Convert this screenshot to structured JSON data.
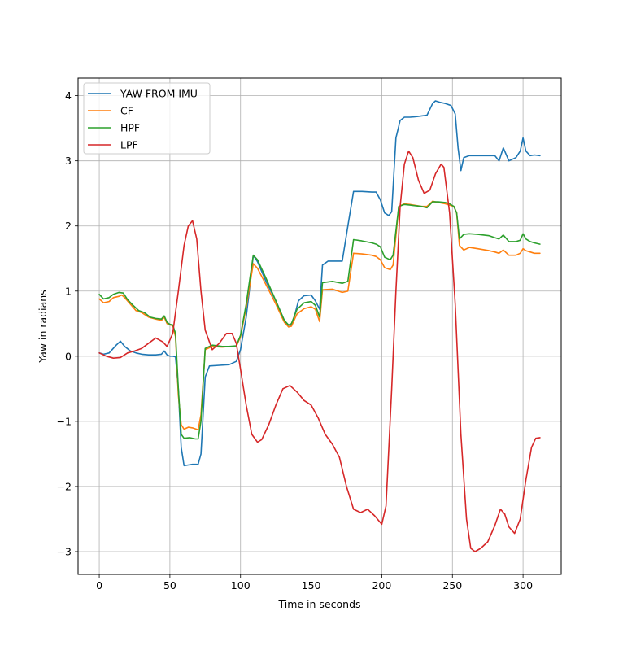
{
  "chart_data": {
    "type": "line",
    "title": "",
    "xlabel": "Time in seconds",
    "ylabel": "Yaw in radians",
    "xlim": [
      -15,
      327
    ],
    "ylim": [
      -3.35,
      4.27
    ],
    "xticks": [
      0,
      50,
      100,
      150,
      200,
      250,
      300
    ],
    "yticks": [
      -3,
      -2,
      -1,
      0,
      1,
      2,
      3,
      4
    ],
    "xtick_labels": [
      "0",
      "50",
      "100",
      "150",
      "200",
      "250",
      "300"
    ],
    "ytick_labels": [
      "−3",
      "−2",
      "−1",
      "0",
      "1",
      "2",
      "3",
      "4"
    ],
    "grid": true,
    "legend_position": "upper-left",
    "series": [
      {
        "name": "YAW FROM IMU",
        "color": "#1f77b4",
        "x": [
          0,
          3,
          7,
          12,
          15,
          18,
          22,
          26,
          30,
          35,
          40,
          44,
          46,
          48,
          50,
          52,
          54,
          56,
          58,
          60,
          63,
          66,
          70,
          72,
          75,
          78,
          85,
          92,
          97,
          100,
          104,
          107,
          109,
          112,
          118,
          125,
          131,
          134,
          136,
          138,
          141,
          145,
          150,
          153,
          156,
          158,
          162,
          167,
          172,
          176,
          180,
          186,
          193,
          196,
          199,
          202,
          205,
          207,
          210,
          213,
          216,
          220,
          225,
          232,
          236,
          238,
          241,
          245,
          249,
          252,
          254,
          256,
          258,
          262,
          268,
          275,
          280,
          283,
          286,
          290,
          295,
          298,
          300,
          302,
          305,
          308,
          312
        ],
        "values": [
          0.05,
          0.03,
          0.05,
          0.17,
          0.23,
          0.15,
          0.08,
          0.05,
          0.03,
          0.02,
          0.02,
          0.03,
          0.08,
          0.02,
          0.0,
          0.0,
          -0.01,
          -0.5,
          -1.4,
          -1.68,
          -1.67,
          -1.66,
          -1.66,
          -1.5,
          -0.32,
          -0.15,
          -0.14,
          -0.13,
          -0.08,
          0.1,
          0.6,
          1.15,
          1.55,
          1.45,
          1.15,
          0.85,
          0.55,
          0.45,
          0.48,
          0.6,
          0.85,
          0.93,
          0.94,
          0.85,
          0.72,
          1.4,
          1.46,
          1.46,
          1.46,
          2.0,
          2.53,
          2.53,
          2.52,
          2.52,
          2.4,
          2.2,
          2.16,
          2.22,
          3.35,
          3.62,
          3.67,
          3.67,
          3.68,
          3.7,
          3.88,
          3.92,
          3.9,
          3.88,
          3.85,
          3.72,
          3.2,
          2.85,
          3.05,
          3.08,
          3.08,
          3.08,
          3.08,
          3.0,
          3.2,
          3.0,
          3.05,
          3.15,
          3.35,
          3.15,
          3.08,
          3.09,
          3.08
        ]
      },
      {
        "name": "CF",
        "color": "#ff7f0e",
        "x": [
          0,
          3,
          7,
          10,
          14,
          16,
          18,
          22,
          26,
          30,
          35,
          40,
          44,
          46,
          48,
          50,
          52,
          54,
          56,
          58,
          60,
          63,
          66,
          70,
          72,
          75,
          80,
          87,
          92,
          97,
          100,
          104,
          107,
          109,
          112,
          118,
          125,
          131,
          134,
          136,
          140,
          145,
          150,
          153,
          156,
          158,
          165,
          172,
          176,
          180,
          186,
          193,
          196,
          199,
          202,
          206,
          208,
          212,
          216,
          220,
          228,
          232,
          236,
          240,
          245,
          248,
          251,
          253,
          255,
          258,
          262,
          268,
          276,
          280,
          283,
          286,
          290,
          295,
          298,
          300,
          302,
          305,
          308,
          312
        ],
        "values": [
          0.88,
          0.82,
          0.84,
          0.9,
          0.92,
          0.94,
          0.9,
          0.8,
          0.7,
          0.67,
          0.6,
          0.57,
          0.55,
          0.6,
          0.5,
          0.48,
          0.47,
          0.3,
          -0.6,
          -1.05,
          -1.12,
          -1.09,
          -1.1,
          -1.13,
          -0.9,
          0.1,
          0.15,
          0.14,
          0.15,
          0.15,
          0.3,
          0.75,
          1.15,
          1.42,
          1.35,
          1.1,
          0.8,
          0.52,
          0.45,
          0.46,
          0.65,
          0.73,
          0.76,
          0.72,
          0.53,
          1.02,
          1.03,
          0.98,
          1.0,
          1.58,
          1.57,
          1.55,
          1.53,
          1.48,
          1.36,
          1.33,
          1.4,
          2.3,
          2.34,
          2.33,
          2.3,
          2.3,
          2.38,
          2.36,
          2.34,
          2.32,
          2.3,
          2.2,
          1.7,
          1.63,
          1.67,
          1.65,
          1.62,
          1.6,
          1.58,
          1.63,
          1.55,
          1.55,
          1.58,
          1.65,
          1.62,
          1.6,
          1.58,
          1.58
        ]
      },
      {
        "name": "HPF",
        "color": "#2ca02c",
        "x": [
          0,
          3,
          7,
          10,
          14,
          17,
          20,
          24,
          28,
          32,
          36,
          40,
          44,
          46,
          48,
          50,
          52,
          54,
          56,
          58,
          60,
          64,
          68,
          70,
          72,
          75,
          80,
          87,
          92,
          97,
          100,
          104,
          107,
          109,
          112,
          118,
          125,
          131,
          134,
          136,
          140,
          145,
          150,
          153,
          156,
          158,
          165,
          172,
          176,
          180,
          186,
          193,
          196,
          199,
          202,
          206,
          208,
          212,
          216,
          220,
          228,
          232,
          236,
          240,
          245,
          248,
          251,
          253,
          255,
          258,
          262,
          268,
          276,
          280,
          283,
          286,
          290,
          295,
          298,
          300,
          302,
          305,
          308,
          312
        ],
        "values": [
          0.95,
          0.88,
          0.9,
          0.95,
          0.98,
          0.97,
          0.87,
          0.78,
          0.7,
          0.67,
          0.6,
          0.58,
          0.57,
          0.62,
          0.52,
          0.49,
          0.48,
          0.35,
          -0.5,
          -1.2,
          -1.26,
          -1.25,
          -1.27,
          -1.27,
          -1.0,
          0.12,
          0.17,
          0.15,
          0.15,
          0.16,
          0.32,
          0.8,
          1.25,
          1.55,
          1.48,
          1.2,
          0.85,
          0.55,
          0.48,
          0.5,
          0.72,
          0.82,
          0.84,
          0.78,
          0.6,
          1.13,
          1.15,
          1.12,
          1.15,
          1.79,
          1.77,
          1.74,
          1.72,
          1.68,
          1.52,
          1.48,
          1.55,
          2.3,
          2.33,
          2.32,
          2.3,
          2.28,
          2.37,
          2.37,
          2.36,
          2.34,
          2.3,
          2.2,
          1.8,
          1.87,
          1.88,
          1.87,
          1.85,
          1.82,
          1.8,
          1.86,
          1.76,
          1.76,
          1.78,
          1.88,
          1.8,
          1.76,
          1.74,
          1.72
        ]
      },
      {
        "name": "LPF",
        "color": "#d62728",
        "x": [
          0,
          5,
          10,
          15,
          20,
          25,
          30,
          35,
          40,
          45,
          48,
          52,
          56,
          60,
          63,
          66,
          69,
          72,
          75,
          80,
          85,
          90,
          94,
          97,
          100,
          104,
          108,
          112,
          115,
          120,
          125,
          130,
          135,
          140,
          145,
          150,
          155,
          160,
          165,
          170,
          175,
          180,
          185,
          190,
          195,
          200,
          203,
          207,
          210,
          213,
          216,
          219,
          222,
          226,
          230,
          234,
          238,
          242,
          244,
          248,
          252,
          256,
          260,
          263,
          266,
          270,
          275,
          280,
          284,
          287,
          290,
          294,
          298,
          302,
          306,
          309,
          312
        ],
        "values": [
          0.05,
          0.0,
          -0.03,
          -0.02,
          0.05,
          0.08,
          0.12,
          0.2,
          0.28,
          0.22,
          0.15,
          0.35,
          1.0,
          1.7,
          2.0,
          2.08,
          1.8,
          1.0,
          0.4,
          0.1,
          0.2,
          0.35,
          0.35,
          0.2,
          -0.2,
          -0.75,
          -1.2,
          -1.32,
          -1.28,
          -1.05,
          -0.75,
          -0.5,
          -0.45,
          -0.55,
          -0.68,
          -0.75,
          -0.95,
          -1.2,
          -1.35,
          -1.55,
          -2.0,
          -2.35,
          -2.4,
          -2.35,
          -2.45,
          -2.58,
          -2.3,
          -0.5,
          1.0,
          2.3,
          2.95,
          3.15,
          3.05,
          2.7,
          2.5,
          2.55,
          2.8,
          2.95,
          2.9,
          2.2,
          0.8,
          -1.2,
          -2.5,
          -2.95,
          -3.0,
          -2.95,
          -2.85,
          -2.6,
          -2.35,
          -2.42,
          -2.62,
          -2.72,
          -2.5,
          -1.9,
          -1.4,
          -1.26,
          -1.25
        ]
      }
    ]
  }
}
